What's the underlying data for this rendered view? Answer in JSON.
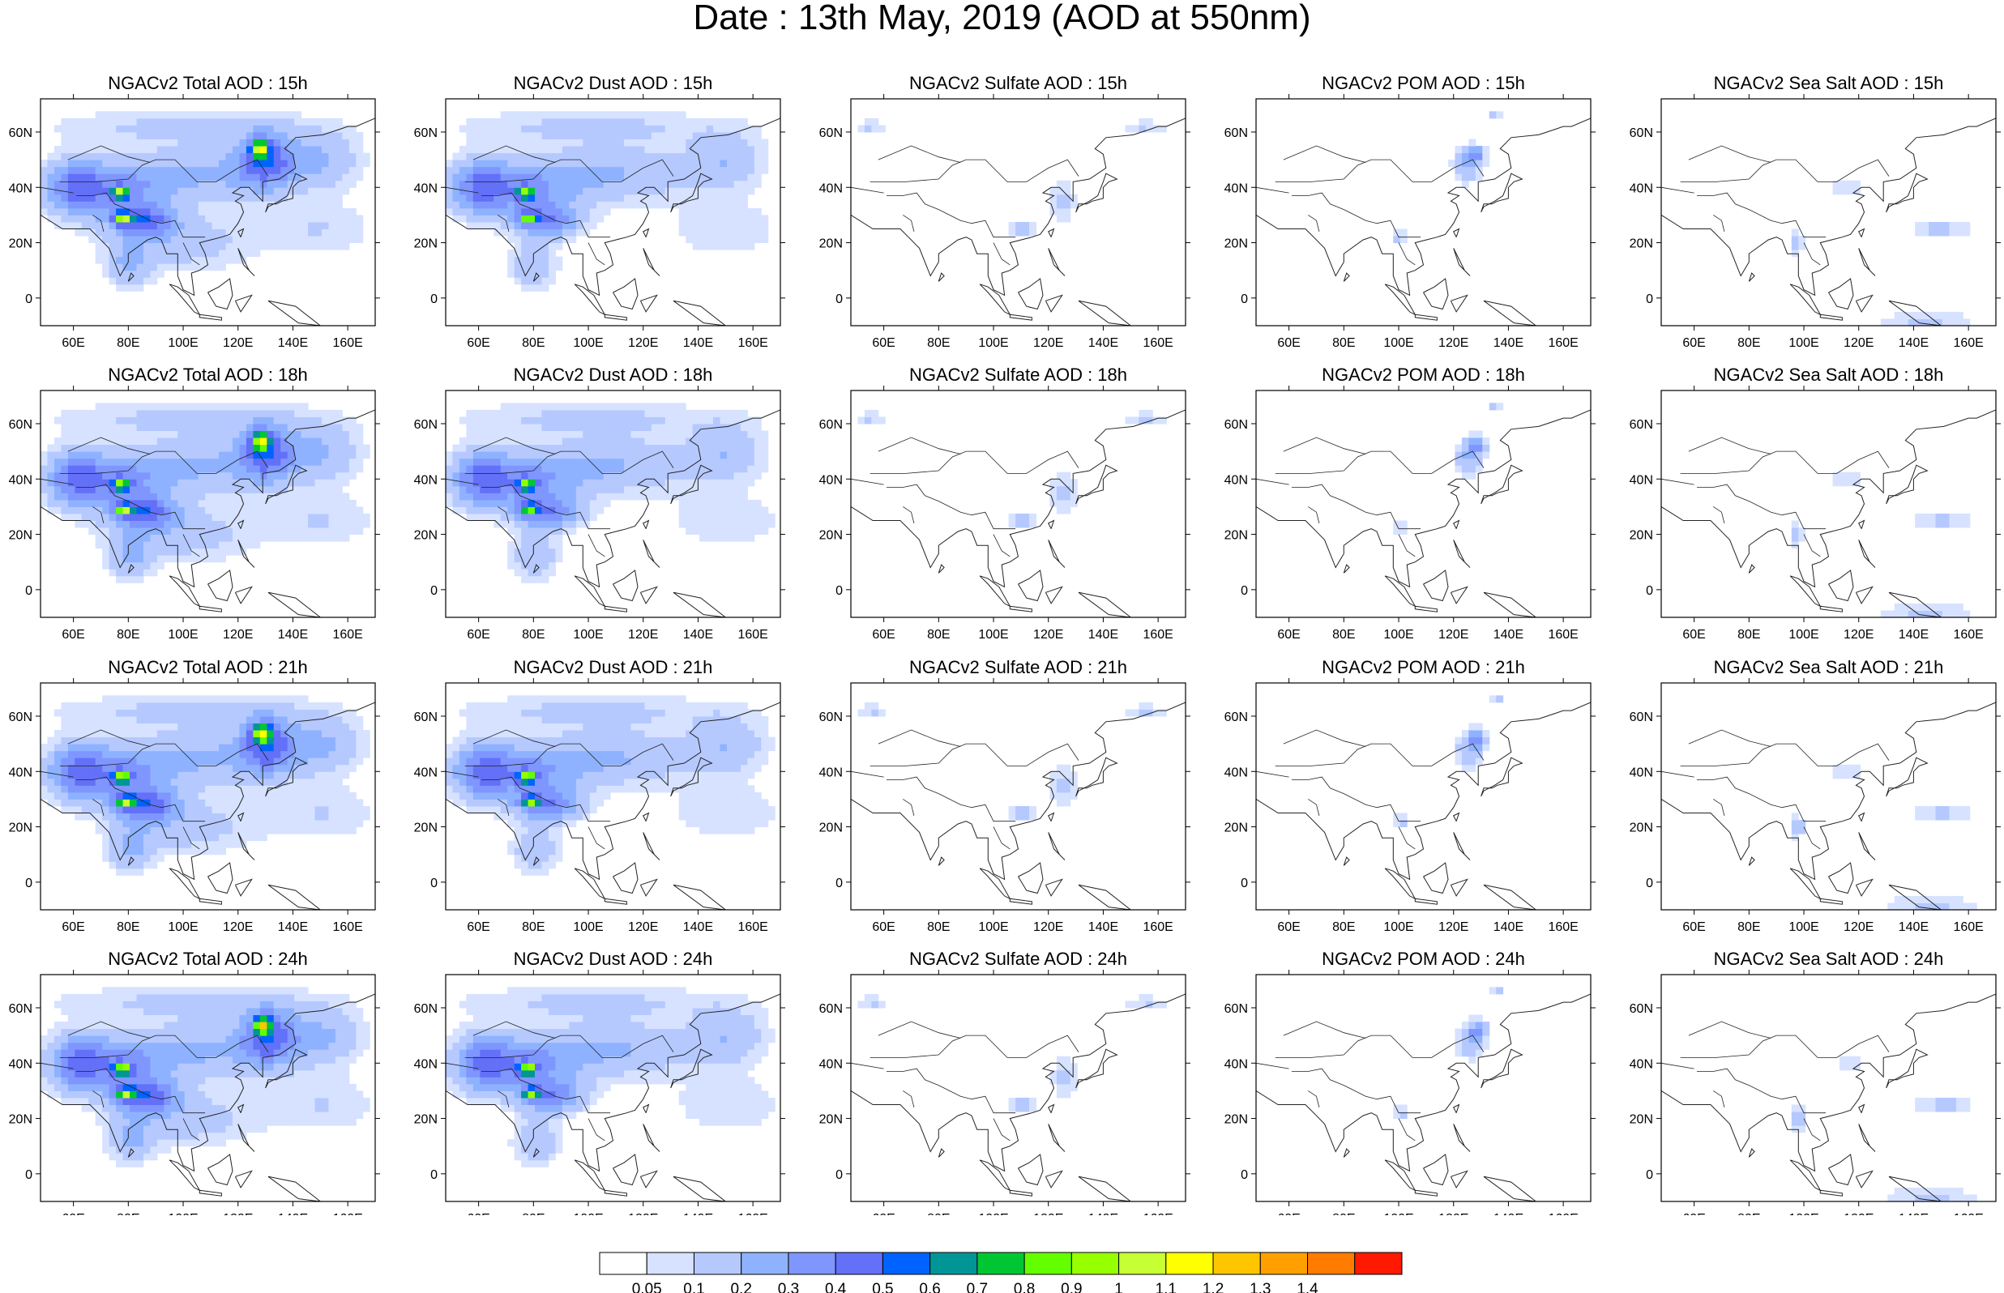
{
  "figure": {
    "title": "Date : 13th May, 2019 (AOD at 550nm)"
  },
  "chart_data": {
    "type": "heatmap",
    "title": "Date : 13th May, 2019 (AOD at 550nm)",
    "panel_grid": {
      "rows": 4,
      "cols": 5
    },
    "variables": [
      "Total",
      "Dust",
      "Sulfate",
      "POM",
      "Sea Salt"
    ],
    "forecast_hours": [
      "15h",
      "18h",
      "21h",
      "24h"
    ],
    "panels": [
      [
        "NGACv2 Total AOD : 15h",
        "NGACv2 Dust AOD : 15h",
        "NGACv2 Sulfate AOD : 15h",
        "NGACv2 POM AOD : 15h",
        "NGACv2 Sea Salt AOD : 15h"
      ],
      [
        "NGACv2 Total AOD : 18h",
        "NGACv2 Dust AOD : 18h",
        "NGACv2 Sulfate AOD : 18h",
        "NGACv2 POM AOD : 18h",
        "NGACv2 Sea Salt AOD : 18h"
      ],
      [
        "NGACv2 Total AOD : 21h",
        "NGACv2 Dust AOD : 21h",
        "NGACv2 Sulfate AOD : 21h",
        "NGACv2 POM AOD : 21h",
        "NGACv2 Sea Salt AOD : 21h"
      ],
      [
        "NGACv2 Total AOD : 24h",
        "NGACv2 Dust AOD : 24h",
        "NGACv2 Sulfate AOD : 24h",
        "NGACv2 POM AOD : 24h",
        "NGACv2 Sea Salt  AOD : 24h"
      ]
    ],
    "x_axis": {
      "lon_range": [
        48,
        170
      ],
      "ticks": [
        60,
        80,
        100,
        120,
        140,
        160
      ],
      "tick_labels": [
        "60E",
        "80E",
        "100E",
        "120E",
        "140E",
        "160E"
      ]
    },
    "y_axis": {
      "lat_range": [
        -10,
        72
      ],
      "ticks": [
        0,
        20,
        40,
        60
      ],
      "tick_labels": [
        "0",
        "20N",
        "40N",
        "60N"
      ]
    },
    "colorbar": {
      "labels": [
        "0.05",
        "0.1",
        "0.2",
        "0.3",
        "0.4",
        "0.5",
        "0.6",
        "0.7",
        "0.8",
        "0.9",
        "1",
        "1.1",
        "1.2",
        "1.3",
        "1.4"
      ],
      "colors": [
        "#ffffff",
        "#d6e2ff",
        "#b5c9ff",
        "#8eb2ff",
        "#7f96ff",
        "#6370f8",
        "#0063ff",
        "#009696",
        "#00c633",
        "#63ff00",
        "#96ff00",
        "#c6ff33",
        "#ffff00",
        "#ffc600",
        "#ffa000",
        "#ff7c00",
        "#ff1900"
      ]
    },
    "blobs": {
      "Total": [
        [
          75,
          40,
          20,
          10,
          0.3
        ],
        [
          85,
          28,
          12,
          6,
          0.4
        ],
        [
          80,
          12,
          8,
          8,
          0.2
        ],
        [
          110,
          45,
          28,
          10,
          0.2
        ],
        [
          130,
          50,
          10,
          10,
          0.4
        ],
        [
          128,
          54,
          3,
          3,
          0.8
        ],
        [
          77,
          38,
          3,
          2,
          0.75
        ],
        [
          78,
          29,
          3,
          2,
          0.7
        ],
        [
          150,
          50,
          14,
          10,
          0.2
        ],
        [
          100,
          20,
          25,
          10,
          0.15
        ],
        [
          60,
          40,
          10,
          10,
          0.3
        ],
        [
          100,
          62,
          50,
          6,
          0.12
        ],
        [
          150,
          25,
          20,
          10,
          0.1
        ]
      ],
      "Dust": [
        [
          75,
          40,
          20,
          10,
          0.3
        ],
        [
          85,
          28,
          12,
          6,
          0.35
        ],
        [
          80,
          12,
          8,
          8,
          0.2
        ],
        [
          110,
          45,
          28,
          10,
          0.2
        ],
        [
          150,
          50,
          14,
          10,
          0.18
        ],
        [
          77,
          38,
          3,
          2,
          0.75
        ],
        [
          78,
          29,
          3,
          2,
          0.6
        ],
        [
          60,
          40,
          10,
          10,
          0.3
        ],
        [
          100,
          62,
          50,
          6,
          0.12
        ],
        [
          150,
          25,
          20,
          10,
          0.1
        ]
      ],
      "Sulfate": [
        [
          55,
          62,
          6,
          2,
          0.12
        ],
        [
          110,
          25,
          6,
          3,
          0.14
        ],
        [
          125,
          35,
          5,
          8,
          0.12
        ],
        [
          155,
          62,
          8,
          2,
          0.12
        ]
      ],
      "POM": [
        [
          125,
          48,
          5,
          6,
          0.2
        ],
        [
          128,
          52,
          3,
          3,
          0.3
        ],
        [
          135,
          66,
          3,
          2,
          0.12
        ],
        [
          100,
          22,
          3,
          3,
          0.12
        ]
      ],
      "Sea Salt": [
        [
          97,
          20,
          2,
          4,
          0.2
        ],
        [
          150,
          25,
          12,
          4,
          0.12
        ],
        [
          145,
          -8,
          18,
          3,
          0.12
        ],
        [
          115,
          40,
          6,
          3,
          0.1
        ]
      ]
    }
  }
}
